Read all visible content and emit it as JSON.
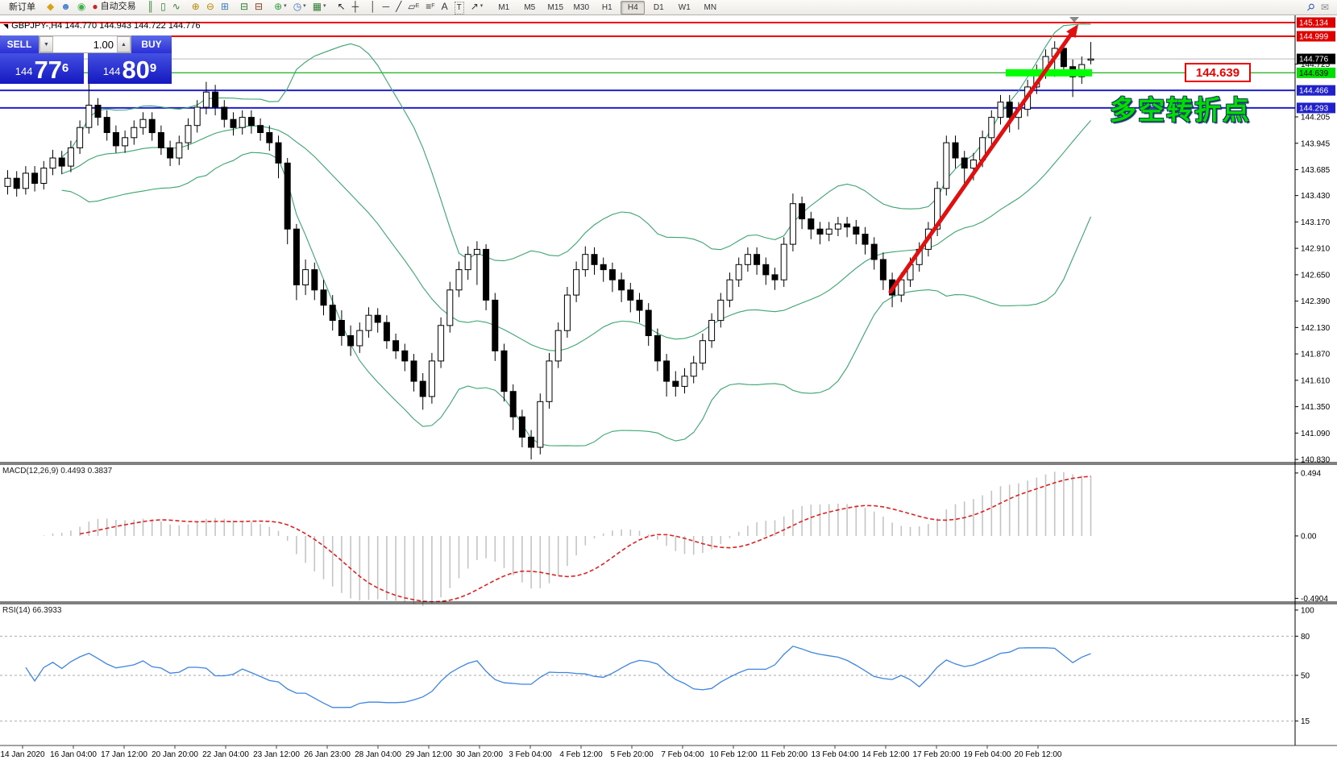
{
  "window": {
    "symbol_line": "GBPJPY-,H4  144.770 144.943 144.722 144.776",
    "corner_glyph": "◥"
  },
  "toolbar": {
    "items": [
      {
        "name": "new-order-button",
        "label": "新订单"
      },
      {
        "sep": true
      },
      {
        "name": "charts-grid-icon",
        "glyph": "◆",
        "color": "#d9a21b"
      },
      {
        "name": "market-watch-icon",
        "glyph": "☻",
        "color": "#4a7ed0"
      },
      {
        "name": "signals-icon",
        "glyph": "◉",
        "color": "#3fae49"
      },
      {
        "name": "autotrading-button",
        "glyph": "●",
        "color": "#cc2222",
        "label": "自动交易"
      },
      {
        "sep": true
      },
      {
        "name": "bar-chart-icon",
        "glyph": "║",
        "color": "#2e7d32"
      },
      {
        "name": "candlestick-chart-icon",
        "glyph": "▯",
        "color": "#2e7d32"
      },
      {
        "name": "line-chart-icon",
        "glyph": "∿",
        "color": "#2e7d32"
      },
      {
        "sep": true
      },
      {
        "name": "zoom-in-icon",
        "glyph": "⊕",
        "color": "#b58a00"
      },
      {
        "name": "zoom-out-icon",
        "glyph": "⊖",
        "color": "#b58a00"
      },
      {
        "name": "tile-windows-icon",
        "glyph": "⊞",
        "color": "#3f7fc0"
      },
      {
        "sep": true
      },
      {
        "name": "indicator-window-icon",
        "glyph": "⊟",
        "color": "#2e7d32"
      },
      {
        "name": "indicator-window-2-icon",
        "glyph": "⊟",
        "color": "#8a3b1e"
      },
      {
        "sep": true
      },
      {
        "name": "add-indicator-icon",
        "glyph": "⊕",
        "color": "#2e9d42",
        "caret": true
      },
      {
        "name": "periods-icon",
        "glyph": "◷",
        "color": "#3f6fb0",
        "caret": true
      },
      {
        "name": "templates-icon",
        "glyph": "▦",
        "color": "#2e7d32",
        "caret": true
      },
      {
        "sep": true
      },
      {
        "name": "cursor-icon",
        "glyph": "↖",
        "color": "#222222"
      },
      {
        "name": "crosshair-icon",
        "glyph": "┼",
        "color": "#222222"
      },
      {
        "sep": true
      },
      {
        "name": "vertical-line-icon",
        "glyph": "│",
        "color": "#333333"
      },
      {
        "name": "horizontal-line-icon",
        "glyph": "─",
        "color": "#333333"
      },
      {
        "name": "trendline-icon",
        "glyph": "╱",
        "color": "#333333"
      },
      {
        "name": "equidistant-channel-icon",
        "glyph": "▱",
        "sub": "E",
        "color": "#333333"
      },
      {
        "name": "fibonacci-icon",
        "glyph": "≡",
        "sub": "F",
        "color": "#333333"
      },
      {
        "name": "text-icon",
        "glyph": "A",
        "color": "#333333"
      },
      {
        "name": "text-label-icon",
        "glyph": "T",
        "boxed": true,
        "color": "#333333"
      },
      {
        "name": "arrows-tool-icon",
        "glyph": "↗",
        "caret": true,
        "color": "#333333"
      },
      {
        "sep": true
      }
    ],
    "timeframes": [
      "M1",
      "M5",
      "M15",
      "M30",
      "H1",
      "H4",
      "D1",
      "W1",
      "MN"
    ],
    "active_timeframe": "H4",
    "right_items": [
      {
        "name": "search-icon",
        "glyph": "⚲",
        "color": "#2a5db0",
        "rot": true
      },
      {
        "name": "chat-icon",
        "glyph": "✉",
        "color": "#8a8a8a"
      }
    ]
  },
  "quote_panel": {
    "sell_label": "SELL",
    "buy_label": "BUY",
    "volume": "1.00",
    "spin_down": "▼",
    "spin_up": "▲",
    "sell_small": "144",
    "sell_big": "77",
    "sell_sup": "6",
    "buy_small": "144",
    "buy_big": "80",
    "buy_sup": "9"
  },
  "indicators": {
    "macd": {
      "title": "MACD(12,26,9)",
      "values": "0.4493 0.3837"
    },
    "rsi": {
      "title": "RSI(14)",
      "value": "66.3933"
    }
  },
  "annotations": {
    "price_box": {
      "text": "144.639",
      "color": "#ee0000"
    },
    "turning_point_text": {
      "text": "多空转折点",
      "color": "#00dd00"
    },
    "green_bar": {
      "price": 144.639,
      "color": "#00ff00"
    },
    "trend_arrow": {
      "color": "#e01010"
    }
  },
  "price_axis": {
    "plain_ticks": [
      144.725,
      144.205,
      143.945,
      143.685,
      143.43,
      143.17,
      142.91,
      142.65,
      142.39,
      142.13,
      141.87,
      141.61,
      141.35,
      141.09,
      140.83
    ],
    "chips": [
      {
        "price": 145.134,
        "bg": "#e00000",
        "fg": "#ffffff"
      },
      {
        "price": 144.999,
        "bg": "#e00000",
        "fg": "#ffffff"
      },
      {
        "price": 144.776,
        "bg": "#000000",
        "fg": "#ffffff"
      },
      {
        "price": 144.639,
        "bg": "#00e000",
        "fg": "#000000"
      },
      {
        "price": 144.466,
        "bg": "#2020cc",
        "fg": "#ffffff"
      },
      {
        "price": 144.293,
        "bg": "#2020cc",
        "fg": "#ffffff"
      }
    ]
  },
  "time_axis": {
    "labels": [
      "14 Jan 2020",
      "16 Jan 04:00",
      "17 Jan 12:00",
      "20 Jan 20:00",
      "22 Jan 04:00",
      "23 Jan 12:00",
      "26 Jan 23:00",
      "28 Jan 04:00",
      "29 Jan 12:00",
      "30 Jan 20:00",
      "3 Feb 04:00",
      "4 Feb 12:00",
      "5 Feb 20:00",
      "7 Feb 04:00",
      "10 Feb 12:00",
      "11 Feb 20:00",
      "13 Feb 04:00",
      "14 Feb 12:00",
      "17 Feb 20:00",
      "19 Feb 04:00",
      "20 Feb 12:00"
    ]
  },
  "chart_data": [
    {
      "type": "candlestick",
      "symbol": "GBPJPY-",
      "timeframe": "H4",
      "ylim": [
        140.807,
        145.1975
      ],
      "grid": false,
      "bollinger_color": "#3aa56e",
      "hlines": [
        {
          "price": 145.134,
          "color": "#f00000",
          "w": 2
        },
        {
          "price": 144.999,
          "color": "#f00000",
          "w": 2
        },
        {
          "price": 144.776,
          "color": "#bbbbbb",
          "w": 1
        },
        {
          "price": 144.639,
          "color": "#2eb82e",
          "w": 1.4
        },
        {
          "price": 144.466,
          "color": "#2020cc",
          "w": 2
        },
        {
          "price": 144.293,
          "color": "#2020cc",
          "w": 2
        }
      ],
      "ohlc": [
        [
          143.52,
          143.68,
          143.44,
          143.6
        ],
        [
          143.6,
          143.67,
          143.42,
          143.5
        ],
        [
          143.5,
          143.72,
          143.44,
          143.65
        ],
        [
          143.65,
          143.72,
          143.47,
          143.55
        ],
        [
          143.55,
          143.77,
          143.49,
          143.7
        ],
        [
          143.7,
          143.88,
          143.63,
          143.8
        ],
        [
          143.8,
          143.87,
          143.64,
          143.72
        ],
        [
          143.72,
          143.97,
          143.66,
          143.9
        ],
        [
          143.9,
          144.17,
          143.84,
          144.1
        ],
        [
          144.1,
          144.6,
          144.04,
          144.32
        ],
        [
          144.32,
          144.39,
          144.12,
          144.2
        ],
        [
          144.2,
          144.27,
          143.97,
          144.05
        ],
        [
          144.05,
          144.12,
          143.85,
          143.92
        ],
        [
          143.92,
          144.07,
          143.85,
          144.0
        ],
        [
          144.0,
          144.17,
          143.93,
          144.1
        ],
        [
          144.1,
          144.25,
          144.03,
          144.18
        ],
        [
          144.18,
          144.25,
          143.97,
          144.05
        ],
        [
          144.05,
          144.12,
          143.83,
          143.9
        ],
        [
          143.9,
          143.97,
          143.72,
          143.8
        ],
        [
          143.8,
          144.02,
          143.73,
          143.95
        ],
        [
          143.95,
          144.19,
          143.88,
          144.12
        ],
        [
          144.12,
          144.37,
          144.05,
          144.3
        ],
        [
          144.3,
          144.55,
          144.23,
          144.45
        ],
        [
          144.45,
          144.52,
          144.22,
          144.3
        ],
        [
          144.3,
          144.37,
          144.1,
          144.18
        ],
        [
          144.18,
          144.25,
          144.02,
          144.1
        ],
        [
          144.1,
          144.27,
          144.03,
          144.2
        ],
        [
          144.2,
          144.27,
          144.04,
          144.12
        ],
        [
          144.12,
          144.19,
          143.97,
          144.05
        ],
        [
          144.05,
          144.12,
          143.87,
          143.95
        ],
        [
          143.95,
          144.02,
          143.6,
          143.75
        ],
        [
          143.75,
          143.8,
          142.95,
          143.1
        ],
        [
          143.1,
          143.15,
          142.4,
          142.55
        ],
        [
          142.55,
          142.8,
          142.45,
          142.7
        ],
        [
          142.7,
          142.77,
          142.4,
          142.5
        ],
        [
          142.5,
          142.6,
          142.25,
          142.35
        ],
        [
          142.35,
          142.45,
          142.1,
          142.2
        ],
        [
          142.2,
          142.3,
          141.95,
          142.05
        ],
        [
          142.05,
          142.15,
          141.85,
          141.95
        ],
        [
          141.95,
          142.18,
          141.88,
          142.1
        ],
        [
          142.1,
          142.33,
          142.03,
          142.25
        ],
        [
          142.25,
          142.32,
          142.08,
          142.18
        ],
        [
          142.18,
          142.25,
          141.92,
          142.0
        ],
        [
          142.0,
          142.07,
          141.82,
          141.9
        ],
        [
          141.9,
          141.97,
          141.7,
          141.8
        ],
        [
          141.8,
          141.87,
          141.5,
          141.6
        ],
        [
          141.6,
          141.68,
          141.32,
          141.45
        ],
        [
          141.45,
          141.88,
          141.38,
          141.8
        ],
        [
          141.8,
          142.23,
          141.73,
          142.15
        ],
        [
          142.15,
          142.58,
          142.08,
          142.5
        ],
        [
          142.5,
          142.78,
          142.43,
          142.7
        ],
        [
          142.7,
          142.93,
          142.6,
          142.85
        ],
        [
          142.85,
          142.98,
          142.55,
          142.9
        ],
        [
          142.9,
          142.95,
          142.3,
          142.4
        ],
        [
          142.4,
          142.47,
          141.8,
          141.9
        ],
        [
          141.9,
          141.97,
          141.4,
          141.5
        ],
        [
          141.5,
          141.57,
          141.12,
          141.25
        ],
        [
          141.25,
          141.32,
          140.95,
          141.05
        ],
        [
          141.05,
          141.12,
          140.83,
          140.95
        ],
        [
          140.95,
          141.48,
          140.88,
          141.4
        ],
        [
          141.4,
          141.88,
          141.33,
          141.8
        ],
        [
          141.8,
          142.18,
          141.73,
          142.1
        ],
        [
          142.1,
          142.53,
          142.03,
          142.45
        ],
        [
          142.45,
          142.78,
          142.38,
          142.7
        ],
        [
          142.7,
          142.93,
          142.63,
          142.85
        ],
        [
          142.85,
          142.92,
          142.65,
          142.75
        ],
        [
          142.75,
          142.82,
          142.58,
          142.7
        ],
        [
          142.7,
          142.77,
          142.48,
          142.6
        ],
        [
          142.6,
          142.67,
          142.38,
          142.5
        ],
        [
          142.5,
          142.57,
          142.28,
          142.4
        ],
        [
          142.4,
          142.47,
          142.18,
          142.3
        ],
        [
          142.3,
          142.37,
          141.95,
          142.05
        ],
        [
          142.05,
          142.12,
          141.7,
          141.8
        ],
        [
          141.8,
          141.87,
          141.45,
          141.6
        ],
        [
          141.6,
          141.7,
          141.45,
          141.55
        ],
        [
          141.55,
          141.73,
          141.48,
          141.65
        ],
        [
          141.65,
          141.85,
          141.58,
          141.78
        ],
        [
          141.78,
          142.07,
          141.71,
          142.0
        ],
        [
          142.0,
          142.27,
          141.93,
          142.2
        ],
        [
          142.2,
          142.47,
          142.13,
          142.4
        ],
        [
          142.4,
          142.67,
          142.33,
          142.6
        ],
        [
          142.6,
          142.82,
          142.53,
          142.75
        ],
        [
          142.75,
          142.92,
          142.68,
          142.85
        ],
        [
          142.85,
          142.92,
          142.65,
          142.75
        ],
        [
          142.75,
          142.82,
          142.55,
          142.65
        ],
        [
          142.65,
          142.72,
          142.5,
          142.6
        ],
        [
          142.6,
          143.02,
          142.53,
          142.95
        ],
        [
          142.95,
          143.45,
          142.88,
          143.35
        ],
        [
          143.35,
          143.42,
          143.1,
          143.2
        ],
        [
          143.2,
          143.27,
          143.0,
          143.1
        ],
        [
          143.1,
          143.17,
          142.95,
          143.05
        ],
        [
          143.05,
          143.17,
          142.98,
          143.1
        ],
        [
          143.1,
          143.22,
          143.03,
          143.15
        ],
        [
          143.15,
          143.22,
          143.02,
          143.12
        ],
        [
          143.12,
          143.19,
          142.95,
          143.05
        ],
        [
          143.05,
          143.12,
          142.85,
          142.95
        ],
        [
          142.95,
          143.02,
          142.7,
          142.8
        ],
        [
          142.8,
          142.87,
          142.5,
          142.6
        ],
        [
          142.6,
          142.67,
          142.33,
          142.45
        ],
        [
          142.45,
          142.67,
          142.38,
          142.6
        ],
        [
          142.6,
          142.82,
          142.53,
          142.75
        ],
        [
          142.75,
          142.97,
          142.68,
          142.9
        ],
        [
          142.9,
          143.17,
          142.83,
          143.1
        ],
        [
          143.1,
          143.57,
          143.03,
          143.5
        ],
        [
          143.5,
          144.02,
          143.43,
          143.95
        ],
        [
          143.95,
          144.02,
          143.7,
          143.8
        ],
        [
          143.8,
          143.87,
          143.55,
          143.7
        ],
        [
          143.7,
          143.85,
          143.58,
          143.78
        ],
        [
          143.78,
          144.07,
          143.71,
          144.0
        ],
        [
          144.0,
          144.27,
          143.93,
          144.2
        ],
        [
          144.2,
          144.42,
          144.13,
          144.35
        ],
        [
          144.35,
          144.42,
          144.05,
          144.2
        ],
        [
          144.2,
          144.35,
          144.08,
          144.28
        ],
        [
          144.28,
          144.57,
          144.21,
          144.5
        ],
        [
          144.5,
          144.72,
          144.43,
          144.65
        ],
        [
          144.65,
          144.87,
          144.58,
          144.8
        ],
        [
          144.8,
          144.95,
          144.6,
          144.88
        ],
        [
          144.88,
          144.93,
          144.62,
          144.7
        ],
        [
          144.7,
          144.77,
          144.4,
          144.6
        ],
        [
          144.6,
          144.8,
          144.53,
          144.72
        ],
        [
          144.77,
          144.943,
          144.722,
          144.776
        ]
      ]
    },
    {
      "type": "macd_histogram",
      "title": "MACD(12,26,9)",
      "fast": 12,
      "slow": 26,
      "signal": 9,
      "current_macd": 0.4493,
      "current_signal": 0.3837,
      "ylim": [
        -0.513,
        0.563
      ],
      "yticks": [
        {
          "v": 0.494,
          "label": "0.494"
        },
        {
          "v": 0.0,
          "label": "0.00"
        },
        {
          "v": -0.4904,
          "label": "-0.4904"
        }
      ],
      "histogram_color": "#c4c4c4",
      "signal_color": "#e02020"
    },
    {
      "type": "line",
      "title": "RSI(14)",
      "period": 14,
      "current_value": 66.3933,
      "ylim": [
        -1.85,
        104.9
      ],
      "levels": [
        80,
        50,
        15
      ],
      "yticks": [
        {
          "v": 100,
          "label": "100"
        },
        {
          "v": 80,
          "label": "80"
        },
        {
          "v": 50,
          "label": "50"
        },
        {
          "v": 15,
          "label": "15"
        }
      ],
      "line_color": "#3d85e0"
    }
  ]
}
